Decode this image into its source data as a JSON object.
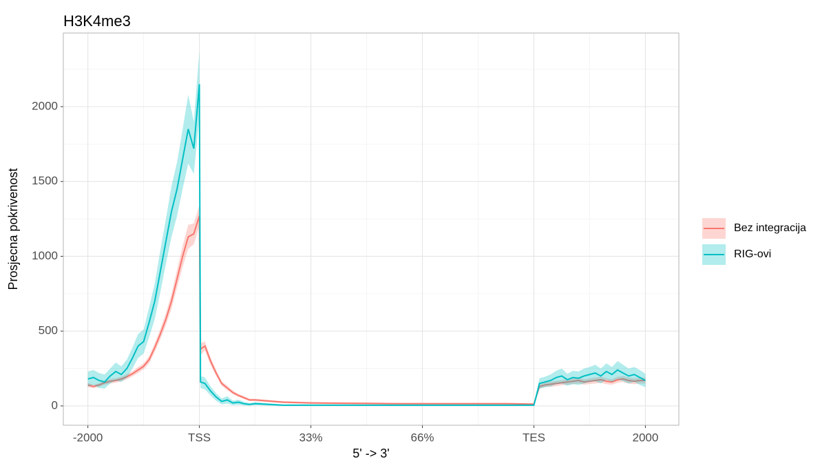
{
  "chart_data": {
    "type": "line",
    "title": "H3K4me3",
    "x_label": "5' -> 3'",
    "y_label": "Prosjecna pokrivenost",
    "x": [
      0,
      5,
      10,
      15,
      20,
      25,
      30,
      35,
      40,
      45,
      50,
      55,
      60,
      65,
      70,
      75,
      80,
      85,
      90,
      95,
      100,
      101,
      105,
      110,
      115,
      120,
      125,
      130,
      135,
      140,
      145,
      150,
      175,
      200,
      225,
      250,
      275,
      300,
      325,
      350,
      375,
      400,
      405,
      410,
      415,
      420,
      425,
      430,
      435,
      440,
      445,
      450,
      455,
      460,
      465,
      470,
      475,
      480,
      485,
      490,
      495,
      500
    ],
    "series": [
      {
        "name": "Bez integracija",
        "color": "#F8766D",
        "values": [
          140,
          130,
          140,
          155,
          165,
          170,
          180,
          195,
          215,
          240,
          265,
          310,
          390,
          480,
          580,
          700,
          850,
          1000,
          1130,
          1150,
          1270,
          380,
          400,
          300,
          220,
          150,
          120,
          90,
          70,
          55,
          40,
          40,
          25,
          20,
          18,
          17,
          15,
          15,
          15,
          15,
          15,
          12,
          130,
          140,
          145,
          150,
          155,
          160,
          165,
          170,
          160,
          165,
          170,
          175,
          165,
          160,
          175,
          180,
          170,
          165,
          170,
          170
        ],
        "lower": [
          125,
          118,
          128,
          142,
          150,
          155,
          165,
          178,
          198,
          220,
          245,
          285,
          360,
          445,
          540,
          650,
          790,
          930,
          1050,
          1080,
          1200,
          340,
          370,
          275,
          200,
          135,
          105,
          78,
          60,
          45,
          32,
          32,
          18,
          14,
          12,
          11,
          10,
          10,
          10,
          10,
          10,
          7,
          115,
          125,
          128,
          132,
          138,
          142,
          146,
          150,
          142,
          146,
          150,
          155,
          145,
          142,
          155,
          160,
          150,
          145,
          150,
          150
        ],
        "upper": [
          155,
          142,
          152,
          168,
          180,
          185,
          195,
          212,
          232,
          260,
          285,
          335,
          420,
          515,
          620,
          750,
          910,
          1070,
          1210,
          1220,
          1340,
          420,
          430,
          325,
          240,
          165,
          135,
          102,
          80,
          65,
          48,
          48,
          32,
          26,
          24,
          23,
          20,
          20,
          20,
          20,
          20,
          17,
          145,
          155,
          162,
          168,
          172,
          178,
          184,
          190,
          178,
          184,
          190,
          195,
          185,
          178,
          195,
          200,
          190,
          185,
          190,
          190
        ]
      },
      {
        "name": "RIG-ovi",
        "color": "#00BFC4",
        "values": [
          180,
          190,
          170,
          160,
          200,
          230,
          210,
          250,
          320,
          400,
          430,
          560,
          700,
          900,
          1100,
          1300,
          1450,
          1650,
          1850,
          1720,
          2150,
          160,
          150,
          100,
          60,
          30,
          40,
          20,
          25,
          15,
          10,
          15,
          5,
          5,
          5,
          5,
          5,
          5,
          5,
          5,
          5,
          5,
          150,
          160,
          170,
          190,
          200,
          175,
          190,
          185,
          200,
          210,
          220,
          200,
          230,
          210,
          240,
          220,
          200,
          210,
          190,
          170
        ],
        "lower": [
          130,
          140,
          120,
          115,
          150,
          170,
          160,
          190,
          250,
          320,
          350,
          460,
          580,
          760,
          950,
          1130,
          1270,
          1450,
          1620,
          1550,
          1930,
          120,
          110,
          70,
          35,
          10,
          15,
          5,
          8,
          3,
          2,
          5,
          0,
          0,
          0,
          0,
          0,
          0,
          0,
          0,
          0,
          0,
          115,
          125,
          130,
          145,
          150,
          135,
          145,
          140,
          150,
          160,
          165,
          150,
          175,
          160,
          180,
          165,
          150,
          160,
          140,
          125
        ],
        "upper": [
          230,
          240,
          220,
          210,
          250,
          290,
          265,
          310,
          390,
          480,
          510,
          660,
          820,
          1040,
          1250,
          1470,
          1630,
          1850,
          2080,
          1900,
          2370,
          200,
          190,
          130,
          85,
          50,
          65,
          35,
          42,
          27,
          18,
          25,
          10,
          10,
          10,
          10,
          10,
          10,
          10,
          10,
          10,
          10,
          185,
          195,
          210,
          235,
          250,
          215,
          235,
          230,
          250,
          260,
          275,
          250,
          285,
          260,
          300,
          275,
          250,
          260,
          240,
          215
        ]
      }
    ],
    "xlim": [
      -22,
      530
    ],
    "xticks": [
      {
        "value": 0,
        "label": "-2000"
      },
      {
        "value": 100,
        "label": "TSS"
      },
      {
        "value": 200,
        "label": "33%"
      },
      {
        "value": 300,
        "label": "66%"
      },
      {
        "value": 400,
        "label": "TES"
      },
      {
        "value": 500,
        "label": "2000"
      }
    ],
    "xminor_ticks": [
      50,
      150,
      250,
      350,
      450
    ],
    "ylim": [
      -129,
      2492
    ],
    "yticks": [
      0,
      500,
      1000,
      1500,
      2000
    ],
    "yminor_ticks": [
      250,
      750,
      1250,
      1750,
      2250
    ],
    "grid": true,
    "legend": "right"
  }
}
